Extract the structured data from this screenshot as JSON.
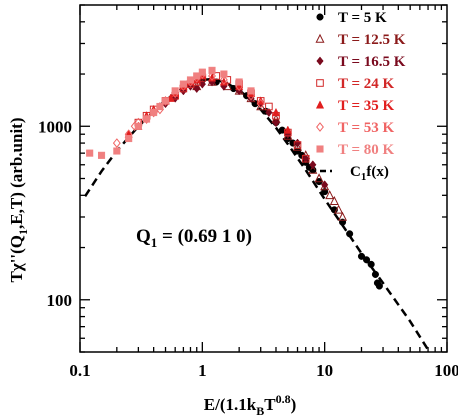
{
  "chart_data": {
    "type": "scatter",
    "title": "",
    "xlabel": "E/(1.1k_B T^0.8)",
    "xlabel_parts": {
      "main": "E/(1.1k",
      "sub": "B",
      "mid": "T",
      "sup": "0.8",
      "end": ")"
    },
    "ylabel": "Tχ''(Q_1,E,T) (arb.unit)",
    "ylabel_parts": {
      "main": "Tχ''(Q",
      "sub": "1",
      "end": ",E,T) (arb.unit)"
    },
    "x_scale": "log",
    "y_scale": "log",
    "xlim": [
      0.1,
      100
    ],
    "ylim": [
      50,
      5000
    ],
    "x_ticks": [
      {
        "value": 0.1,
        "label": "0.1"
      },
      {
        "value": 1,
        "label": "1"
      },
      {
        "value": 10,
        "label": "10"
      },
      {
        "value": 100,
        "label": "100"
      }
    ],
    "y_ticks": [
      {
        "value": 100,
        "label": "100"
      },
      {
        "value": 1000,
        "label": "1000"
      }
    ],
    "grid": false,
    "legend_position": "top-right",
    "annotation": {
      "main": "Q",
      "sub": "1",
      "rest": " = (0.69 1 0)"
    },
    "fit": {
      "name": "C_1f(x)",
      "name_parts": {
        "main": "C",
        "sub": "1",
        "rest": "f(x)"
      },
      "style": "dashed",
      "color": "#000000",
      "points": [
        [
          0.11,
          395
        ],
        [
          0.15,
          550
        ],
        [
          0.2,
          720
        ],
        [
          0.3,
          1000
        ],
        [
          0.45,
          1320
        ],
        [
          0.6,
          1560
        ],
        [
          0.8,
          1760
        ],
        [
          1.0,
          1850
        ],
        [
          1.2,
          1870
        ],
        [
          1.5,
          1800
        ],
        [
          2.0,
          1620
        ],
        [
          3.0,
          1250
        ],
        [
          4.0,
          980
        ],
        [
          5.0,
          790
        ],
        [
          7.0,
          560
        ],
        [
          10.0,
          380
        ],
        [
          15.0,
          250
        ],
        [
          20.0,
          185
        ],
        [
          30.0,
          125
        ],
        [
          50.0,
          75
        ],
        [
          72.0,
          50
        ]
      ]
    },
    "series": [
      {
        "name": "T = 5 K",
        "marker": "circle-filled",
        "color": "#000000",
        "points": [
          [
            1.0,
            1850
          ],
          [
            1.3,
            1800
          ],
          [
            1.8,
            1650
          ],
          [
            2.3,
            1500
          ],
          [
            2.7,
            1350
          ],
          [
            3.3,
            1220
          ],
          [
            4.0,
            1050
          ],
          [
            4.5,
            950
          ],
          [
            5.0,
            850
          ],
          [
            5.5,
            800
          ],
          [
            6.0,
            720
          ],
          [
            6.5,
            680
          ],
          [
            7.0,
            620
          ],
          [
            7.5,
            580
          ],
          [
            8.0,
            560
          ],
          [
            9.0,
            480
          ],
          [
            10.0,
            420
          ],
          [
            12.0,
            330
          ],
          [
            14.0,
            280
          ],
          [
            16.0,
            240
          ],
          [
            20.0,
            178
          ],
          [
            22.0,
            170
          ],
          [
            24.0,
            160
          ],
          [
            26.0,
            140
          ],
          [
            27.0,
            125
          ],
          [
            28.0,
            120
          ]
        ]
      },
      {
        "name": "T = 12.5 K",
        "marker": "triangle-open",
        "color": "#8B1A1A",
        "points": [
          [
            0.9,
            1700
          ],
          [
            1.2,
            1800
          ],
          [
            1.6,
            1700
          ],
          [
            2.0,
            1600
          ],
          [
            2.5,
            1450
          ],
          [
            3.0,
            1300
          ],
          [
            4.0,
            1100
          ],
          [
            5.0,
            880
          ],
          [
            6.0,
            760
          ],
          [
            7.0,
            680
          ],
          [
            8.0,
            560
          ],
          [
            9.0,
            500
          ],
          [
            10.0,
            450
          ],
          [
            11.0,
            400
          ],
          [
            12.0,
            370
          ],
          [
            13.0,
            330
          ],
          [
            14.0,
            300
          ]
        ]
      },
      {
        "name": "T = 16.5 K",
        "marker": "diamond-filled",
        "color": "#7A0A1E",
        "points": [
          [
            0.5,
            1350
          ],
          [
            0.6,
            1450
          ],
          [
            0.7,
            1600
          ],
          [
            0.8,
            1700
          ],
          [
            0.9,
            1650
          ],
          [
            1.0,
            1750
          ],
          [
            1.2,
            1800
          ],
          [
            1.5,
            1700
          ],
          [
            2.0,
            1600
          ],
          [
            2.5,
            1450
          ],
          [
            3.0,
            1350
          ],
          [
            3.5,
            1200
          ],
          [
            4.0,
            1050
          ],
          [
            5.0,
            900
          ],
          [
            6.0,
            800
          ],
          [
            7.0,
            650
          ],
          [
            8.0,
            600
          ],
          [
            10.0,
            460
          ]
        ]
      },
      {
        "name": "T = 24 K",
        "marker": "square-open",
        "color": "#D22828",
        "points": [
          [
            0.3,
            1050
          ],
          [
            0.35,
            1150
          ],
          [
            0.4,
            1250
          ],
          [
            0.5,
            1400
          ],
          [
            0.6,
            1500
          ],
          [
            0.7,
            1650
          ],
          [
            0.8,
            1750
          ],
          [
            0.9,
            1800
          ],
          [
            1.0,
            1900
          ],
          [
            1.3,
            1950
          ],
          [
            1.6,
            1850
          ],
          [
            2.0,
            1750
          ],
          [
            2.5,
            1550
          ],
          [
            3.0,
            1400
          ],
          [
            3.5,
            1300
          ],
          [
            4.0,
            1150
          ],
          [
            5.0,
            920
          ],
          [
            6.0,
            780
          ],
          [
            7.0,
            650
          ]
        ]
      },
      {
        "name": "T = 35 K",
        "marker": "triangle-filled",
        "color": "#E11E1E",
        "points": [
          [
            0.25,
            900
          ],
          [
            0.3,
            1000
          ],
          [
            0.35,
            1150
          ],
          [
            0.4,
            1250
          ],
          [
            0.45,
            1300
          ],
          [
            0.5,
            1400
          ],
          [
            0.55,
            1450
          ],
          [
            0.6,
            1550
          ],
          [
            0.7,
            1700
          ],
          [
            0.8,
            1800
          ],
          [
            0.9,
            1850
          ],
          [
            1.0,
            1950
          ],
          [
            1.2,
            1900
          ],
          [
            1.5,
            1800
          ],
          [
            2.0,
            1700
          ],
          [
            2.5,
            1550
          ],
          [
            3.0,
            1400
          ],
          [
            4.0,
            1200
          ],
          [
            5.0,
            950
          ]
        ]
      },
      {
        "name": "T = 53 K",
        "marker": "diamond-open",
        "color": "#F06464",
        "points": [
          [
            0.2,
            800
          ],
          [
            0.25,
            900
          ],
          [
            0.28,
            1000
          ],
          [
            0.3,
            1050
          ],
          [
            0.35,
            1100
          ],
          [
            0.4,
            1200
          ],
          [
            0.45,
            1250
          ],
          [
            0.5,
            1400
          ],
          [
            0.6,
            1550
          ],
          [
            0.7,
            1700
          ],
          [
            0.8,
            1800
          ],
          [
            0.9,
            1900
          ],
          [
            1.0,
            2000
          ],
          [
            1.2,
            1950
          ],
          [
            1.5,
            1850
          ],
          [
            2.0,
            1700
          ],
          [
            2.5,
            1500
          ],
          [
            3.0,
            1350
          ]
        ]
      },
      {
        "name": "T = 80 K",
        "marker": "square-filled",
        "color": "#F08080",
        "points": [
          [
            0.12,
            700
          ],
          [
            0.15,
            680
          ],
          [
            0.2,
            720
          ],
          [
            0.25,
            850
          ],
          [
            0.3,
            1000
          ],
          [
            0.35,
            1100
          ],
          [
            0.4,
            1200
          ],
          [
            0.45,
            1300
          ],
          [
            0.5,
            1400
          ],
          [
            0.6,
            1600
          ],
          [
            0.7,
            1750
          ],
          [
            0.8,
            1850
          ],
          [
            0.9,
            1950
          ],
          [
            1.0,
            2050
          ],
          [
            1.2,
            2100
          ],
          [
            1.5,
            2000
          ],
          [
            2.0,
            1800
          ],
          [
            2.5,
            1600
          ]
        ]
      }
    ]
  }
}
